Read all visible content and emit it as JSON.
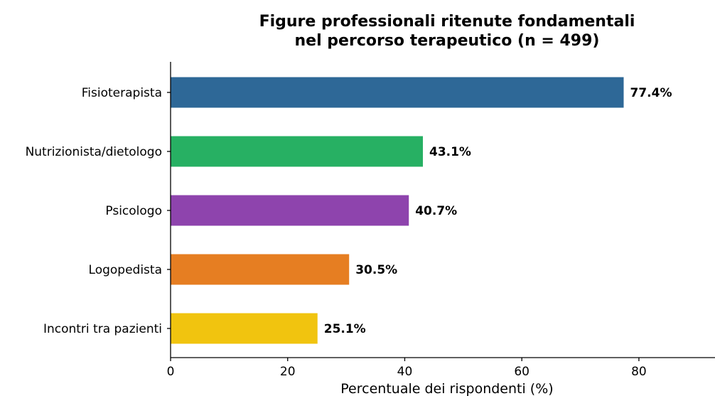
{
  "chart_data": {
    "type": "bar",
    "orientation": "horizontal",
    "title": "Figure professionali ritenute fondamentali nel percorso terapeutico (n = 499)",
    "title_lines": [
      "Figure professionali ritenute fondamentali",
      "nel percorso terapeutico (n = 499)"
    ],
    "xlabel": "Percentuale dei rispondenti (%)",
    "ylabel": "",
    "xlim": [
      0,
      93
    ],
    "xticks": [
      0,
      20,
      40,
      60,
      80
    ],
    "grid": false,
    "categories": [
      "Fisioterapista",
      "Nutrizionista/dietologo",
      "Psicologo",
      "Logopedista",
      "Incontri tra pazienti"
    ],
    "values": [
      77.4,
      43.1,
      40.7,
      30.5,
      25.1
    ],
    "value_labels": [
      "77.4%",
      "43.1%",
      "40.7%",
      "30.5%",
      "25.1%"
    ],
    "colors": [
      "#2e6897",
      "#27b063",
      "#8e44ad",
      "#e67e22",
      "#f1c40f"
    ]
  }
}
